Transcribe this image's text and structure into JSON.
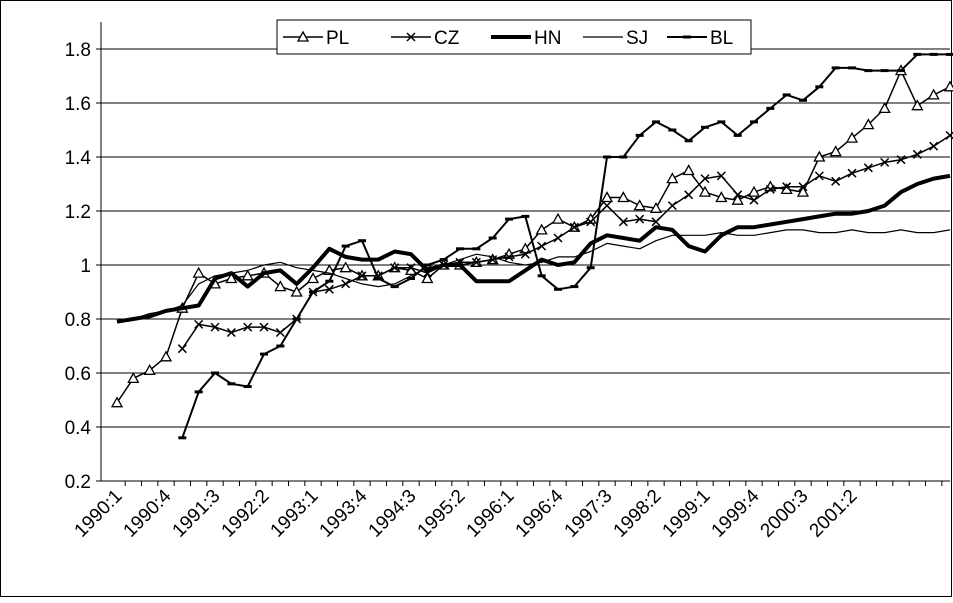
{
  "chart_data": {
    "type": "line",
    "categories": [
      "1990:1",
      null,
      null,
      "1990:4",
      null,
      null,
      "1991:3",
      null,
      null,
      "1992:2",
      null,
      null,
      "1993:1",
      null,
      null,
      "1993:4",
      null,
      null,
      "1994:3",
      null,
      null,
      "1995:2",
      null,
      null,
      "1996:1",
      null,
      null,
      "1996:4",
      null,
      null,
      "1997:3",
      null,
      null,
      "1998:2",
      null,
      null,
      "1999:1",
      null,
      null,
      "1999:4",
      null,
      null,
      "2000:3",
      null,
      null,
      "2001:2",
      null,
      null,
      null,
      null,
      null,
      null
    ],
    "series": [
      {
        "name": "PL",
        "color": "#000000",
        "values": [
          0.49,
          0.58,
          0.61,
          0.66,
          0.84,
          0.97,
          0.93,
          0.95,
          0.96,
          0.97,
          0.92,
          0.9,
          0.95,
          0.98,
          0.99,
          0.96,
          0.96,
          0.99,
          0.98,
          0.95,
          1.0,
          1.0,
          1.01,
          1.02,
          1.04,
          1.06,
          1.13,
          1.17,
          1.14,
          1.17,
          1.25,
          1.25,
          1.22,
          1.21,
          1.32,
          1.35,
          1.27,
          1.25,
          1.24,
          1.27,
          1.29,
          1.28,
          1.27,
          1.4,
          1.42,
          1.47,
          1.52,
          1.58,
          1.72,
          1.59,
          1.63,
          1.66
        ]
      },
      {
        "name": "CZ",
        "color": "#000000",
        "values": [
          null,
          null,
          null,
          null,
          0.69,
          0.78,
          0.77,
          0.75,
          0.77,
          0.77,
          0.75,
          0.8,
          0.9,
          0.91,
          0.93,
          0.96,
          0.96,
          0.99,
          0.99,
          0.97,
          1.0,
          1.01,
          1.01,
          1.02,
          1.03,
          1.04,
          1.07,
          1.1,
          1.14,
          1.16,
          1.22,
          1.16,
          1.17,
          1.16,
          1.22,
          1.26,
          1.32,
          1.33,
          1.26,
          1.24,
          1.28,
          1.29,
          1.29,
          1.33,
          1.31,
          1.34,
          1.36,
          1.38,
          1.39,
          1.41,
          1.44,
          1.48
        ]
      },
      {
        "name": "HN",
        "color": "#000000",
        "values": [
          0.79,
          0.8,
          0.81,
          0.83,
          0.84,
          0.85,
          0.95,
          0.97,
          0.92,
          0.97,
          0.98,
          0.93,
          0.99,
          1.06,
          1.03,
          1.02,
          1.02,
          1.05,
          1.04,
          0.98,
          1.0,
          1.0,
          0.94,
          0.94,
          0.94,
          0.98,
          1.02,
          1.0,
          1.01,
          1.08,
          1.11,
          1.1,
          1.09,
          1.14,
          1.13,
          1.07,
          1.05,
          1.11,
          1.14,
          1.14,
          1.15,
          1.16,
          1.17,
          1.18,
          1.19,
          1.19,
          1.2,
          1.22,
          1.27,
          1.3,
          1.32,
          1.33
        ]
      },
      {
        "name": "SJ",
        "color": "#000000",
        "values": [
          0.79,
          0.8,
          0.82,
          0.83,
          0.85,
          0.93,
          0.96,
          0.97,
          0.98,
          1.0,
          1.01,
          0.99,
          0.98,
          0.97,
          0.95,
          0.93,
          0.92,
          0.93,
          0.96,
          0.99,
          1.0,
          1.02,
          1.04,
          1.03,
          1.01,
          1.0,
          1.01,
          1.03,
          1.03,
          1.05,
          1.08,
          1.07,
          1.06,
          1.09,
          1.11,
          1.11,
          1.11,
          1.12,
          1.11,
          1.11,
          1.12,
          1.13,
          1.13,
          1.12,
          1.12,
          1.13,
          1.12,
          1.12,
          1.13,
          1.12,
          1.12,
          1.13
        ]
      },
      {
        "name": "BL",
        "color": "#000000",
        "values": [
          null,
          null,
          null,
          null,
          0.36,
          0.53,
          0.6,
          0.56,
          0.55,
          0.67,
          0.7,
          0.8,
          0.9,
          0.94,
          1.07,
          1.09,
          0.95,
          0.92,
          0.95,
          1.0,
          1.02,
          1.06,
          1.06,
          1.1,
          1.17,
          1.18,
          0.96,
          0.91,
          0.92,
          0.99,
          1.4,
          1.4,
          1.48,
          1.53,
          1.5,
          1.46,
          1.51,
          1.53,
          1.48,
          1.53,
          1.58,
          1.63,
          1.61,
          1.66,
          1.73,
          1.73,
          1.72,
          1.72,
          1.72,
          1.78,
          1.78,
          1.78
        ]
      }
    ],
    "ylim": [
      0.2,
      1.8
    ],
    "yticks": [
      0.2,
      0.4,
      0.6,
      0.8,
      1,
      1.2,
      1.4,
      1.6,
      1.8
    ],
    "grid": true,
    "legend": "top"
  }
}
